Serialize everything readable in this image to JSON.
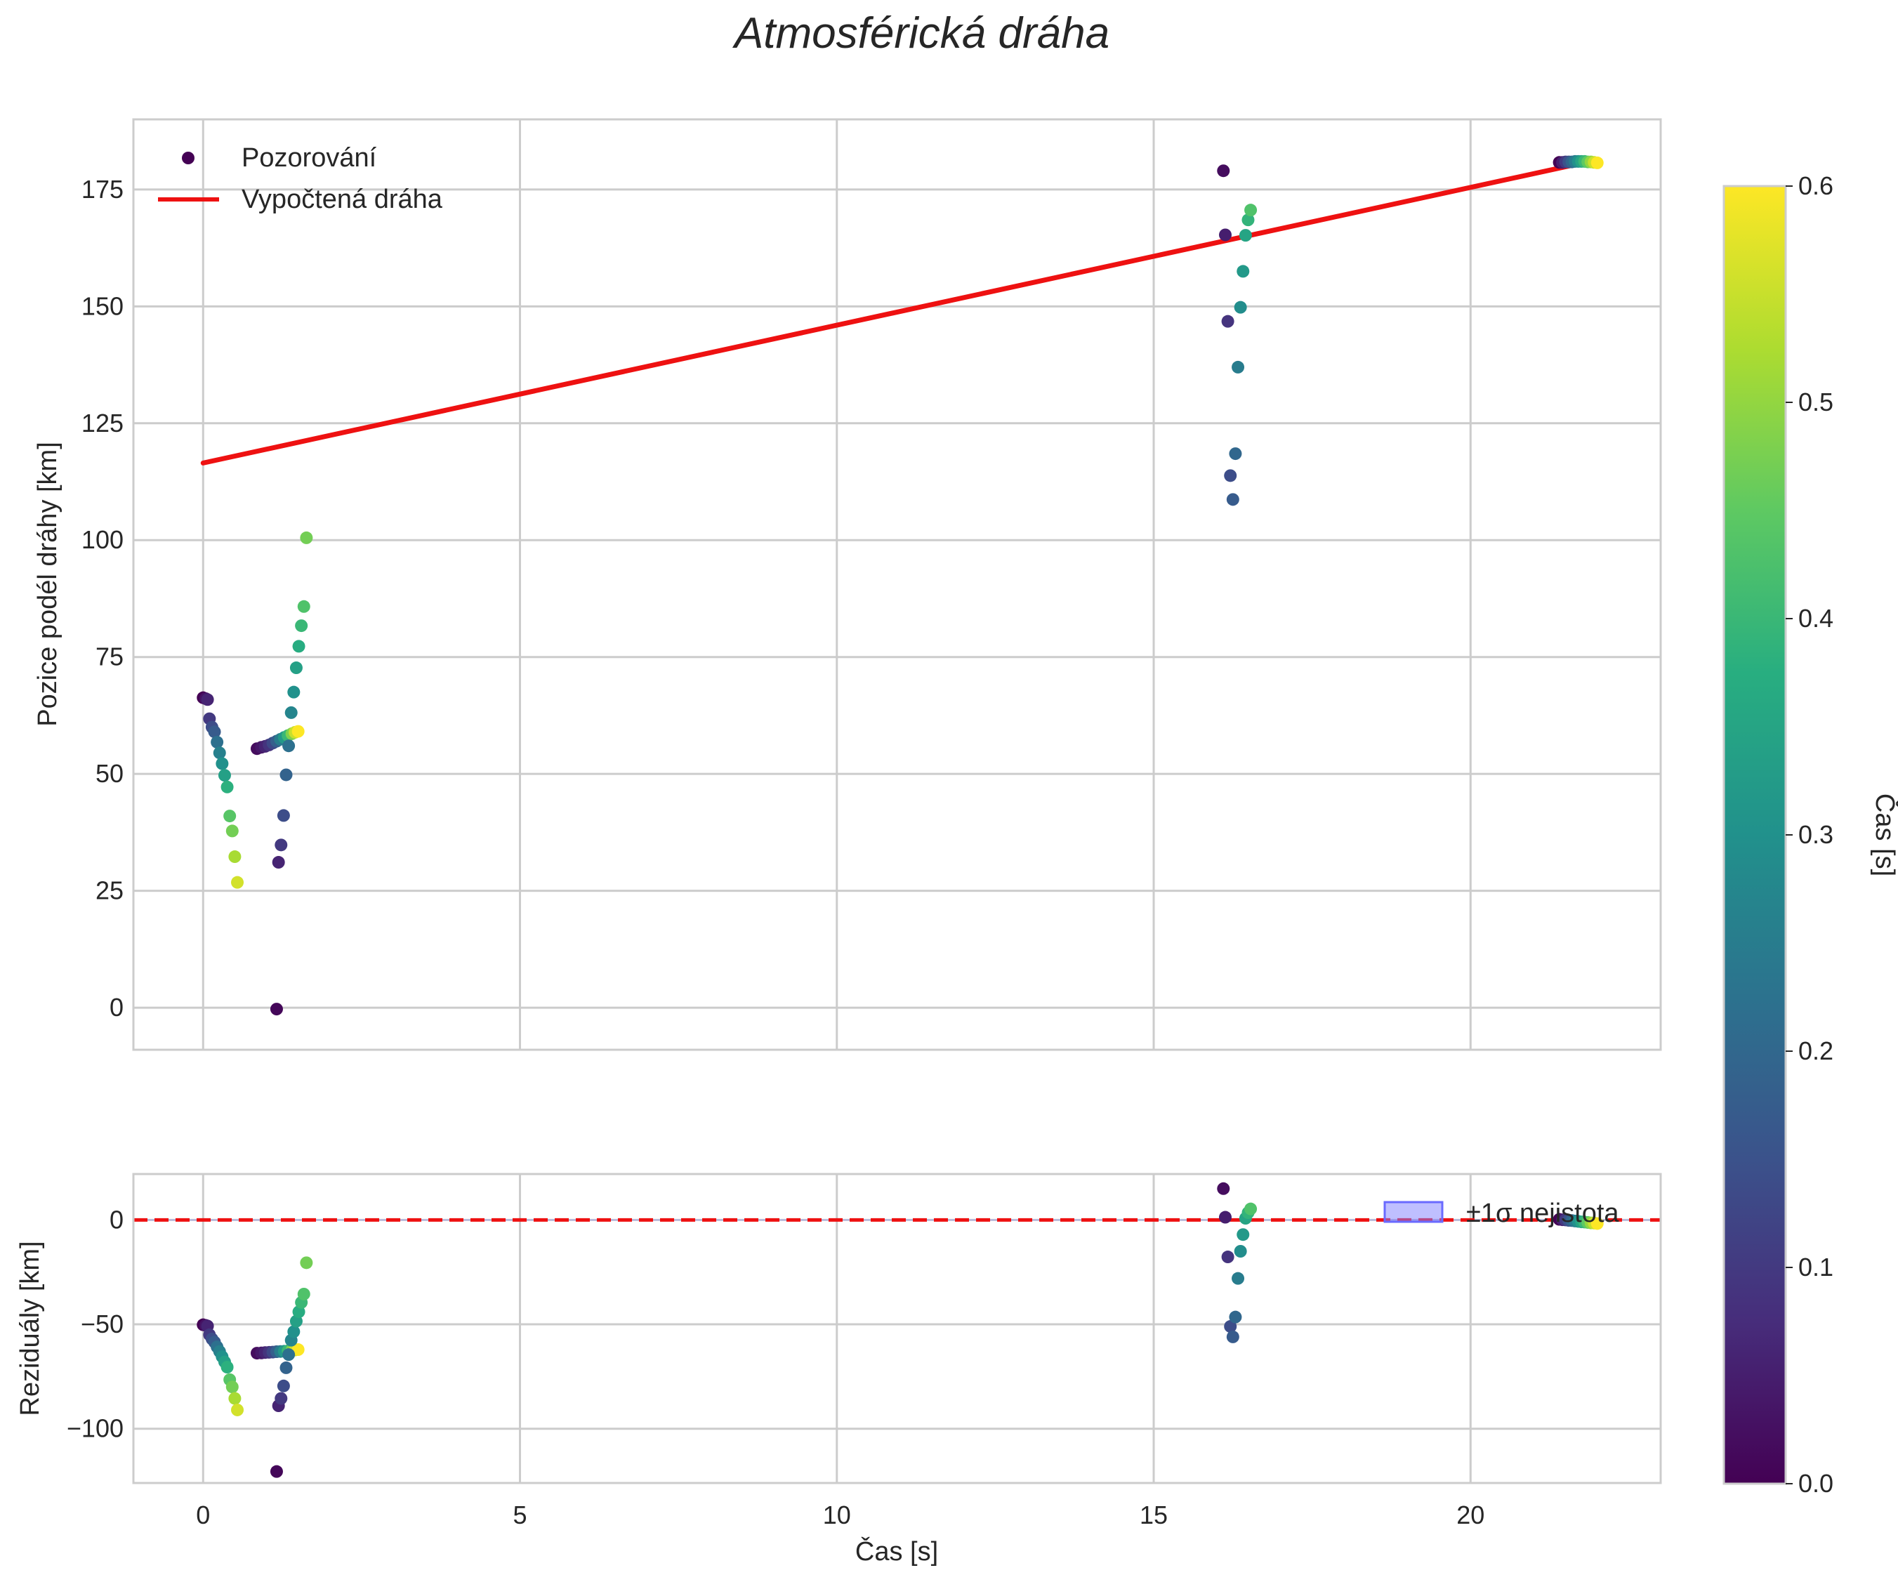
{
  "chart_data": {
    "type": "scatter",
    "title": "Atmosférická dráha",
    "xlabel": "Čas [s]",
    "shared_x": {
      "lim": [
        -1.1,
        23.0
      ],
      "ticks": [
        0,
        5,
        10,
        15,
        20
      ],
      "tick_labels": [
        "0",
        "5",
        "10",
        "15",
        "20"
      ]
    },
    "colorbar": {
      "label": "Čas [s]",
      "lim": [
        0.0,
        0.6
      ],
      "ticks": [
        0.0,
        0.1,
        0.2,
        0.3,
        0.4,
        0.5,
        0.6
      ],
      "tick_labels": [
        "0.0",
        "0.1",
        "0.2",
        "0.3",
        "0.4",
        "0.5",
        "0.6"
      ],
      "colormap": "viridis"
    },
    "colors": {
      "fit_line": "#ee1111",
      "grid": "#cccccc",
      "band": "#8080ff"
    },
    "top_panel": {
      "ylabel": "Pozice podél dráhy [km]",
      "ylim": [
        -9,
        190
      ],
      "yticks": [
        0,
        25,
        50,
        75,
        100,
        125,
        150,
        175
      ],
      "ytick_labels": [
        "0",
        "25",
        "50",
        "75",
        "100",
        "125",
        "150",
        "175"
      ],
      "legend": {
        "position": "top-left",
        "entries": [
          "Pozorování",
          "Vypočtená dráha"
        ]
      },
      "fit_line": {
        "name": "Vypočtená dráha",
        "x": [
          0.0,
          21.95
        ],
        "y": [
          116.5,
          181.2
        ]
      },
      "observations": [
        {
          "x": 0.0,
          "y": 66.3,
          "c": 0.0
        },
        {
          "x": 0.04,
          "y": 66.1,
          "c": 0.03
        },
        {
          "x": 0.07,
          "y": 65.9,
          "c": 0.06
        },
        {
          "x": 0.1,
          "y": 61.8,
          "c": 0.1
        },
        {
          "x": 0.14,
          "y": 60.0,
          "c": 0.14
        },
        {
          "x": 0.18,
          "y": 59.0,
          "c": 0.17
        },
        {
          "x": 0.22,
          "y": 56.8,
          "c": 0.22
        },
        {
          "x": 0.26,
          "y": 54.5,
          "c": 0.26
        },
        {
          "x": 0.3,
          "y": 52.2,
          "c": 0.3
        },
        {
          "x": 0.34,
          "y": 49.7,
          "c": 0.34
        },
        {
          "x": 0.38,
          "y": 47.2,
          "c": 0.38
        },
        {
          "x": 0.42,
          "y": 41.0,
          "c": 0.44
        },
        {
          "x": 0.46,
          "y": 37.8,
          "c": 0.47
        },
        {
          "x": 0.5,
          "y": 32.3,
          "c": 0.52
        },
        {
          "x": 0.54,
          "y": 26.8,
          "c": 0.56
        },
        {
          "x": 0.85,
          "y": 55.4,
          "c": 0.02
        },
        {
          "x": 0.92,
          "y": 55.7,
          "c": 0.04
        },
        {
          "x": 0.98,
          "y": 55.9,
          "c": 0.06
        },
        {
          "x": 1.04,
          "y": 56.2,
          "c": 0.09
        },
        {
          "x": 1.1,
          "y": 56.6,
          "c": 0.13
        },
        {
          "x": 1.16,
          "y": 57.0,
          "c": 0.18
        },
        {
          "x": 1.22,
          "y": 57.4,
          "c": 0.25
        },
        {
          "x": 1.28,
          "y": 57.8,
          "c": 0.32
        },
        {
          "x": 1.34,
          "y": 58.2,
          "c": 0.4
        },
        {
          "x": 1.4,
          "y": 58.6,
          "c": 0.48
        },
        {
          "x": 1.45,
          "y": 58.9,
          "c": 0.55
        },
        {
          "x": 1.5,
          "y": 59.1,
          "c": 0.6
        },
        {
          "x": 1.16,
          "y": -0.3,
          "c": 0.01
        },
        {
          "x": 1.19,
          "y": 31.1,
          "c": 0.06
        },
        {
          "x": 1.23,
          "y": 34.8,
          "c": 0.1
        },
        {
          "x": 1.27,
          "y": 41.1,
          "c": 0.14
        },
        {
          "x": 1.31,
          "y": 49.8,
          "c": 0.19
        },
        {
          "x": 1.35,
          "y": 56.0,
          "c": 0.22
        },
        {
          "x": 1.39,
          "y": 63.1,
          "c": 0.27
        },
        {
          "x": 1.43,
          "y": 67.5,
          "c": 0.3
        },
        {
          "x": 1.47,
          "y": 72.7,
          "c": 0.34
        },
        {
          "x": 1.51,
          "y": 77.3,
          "c": 0.37
        },
        {
          "x": 1.55,
          "y": 81.7,
          "c": 0.4
        },
        {
          "x": 1.59,
          "y": 85.8,
          "c": 0.43
        },
        {
          "x": 1.63,
          "y": 100.5,
          "c": 0.47
        },
        {
          "x": 16.1,
          "y": 179.0,
          "c": 0.02
        },
        {
          "x": 16.13,
          "y": 165.3,
          "c": 0.05
        },
        {
          "x": 16.17,
          "y": 146.8,
          "c": 0.09
        },
        {
          "x": 16.21,
          "y": 113.8,
          "c": 0.14
        },
        {
          "x": 16.25,
          "y": 108.7,
          "c": 0.17
        },
        {
          "x": 16.29,
          "y": 118.5,
          "c": 0.2
        },
        {
          "x": 16.33,
          "y": 137.0,
          "c": 0.25
        },
        {
          "x": 16.37,
          "y": 149.8,
          "c": 0.29
        },
        {
          "x": 16.41,
          "y": 157.5,
          "c": 0.32
        },
        {
          "x": 16.45,
          "y": 165.2,
          "c": 0.35
        },
        {
          "x": 16.49,
          "y": 168.5,
          "c": 0.39
        },
        {
          "x": 16.53,
          "y": 170.6,
          "c": 0.43
        },
        {
          "x": 21.4,
          "y": 180.8,
          "c": 0.0
        },
        {
          "x": 21.45,
          "y": 180.8,
          "c": 0.05
        },
        {
          "x": 21.5,
          "y": 180.9,
          "c": 0.1
        },
        {
          "x": 21.55,
          "y": 180.9,
          "c": 0.15
        },
        {
          "x": 21.6,
          "y": 180.9,
          "c": 0.2
        },
        {
          "x": 21.65,
          "y": 181.0,
          "c": 0.25
        },
        {
          "x": 21.7,
          "y": 181.0,
          "c": 0.3
        },
        {
          "x": 21.75,
          "y": 181.0,
          "c": 0.35
        },
        {
          "x": 21.8,
          "y": 181.0,
          "c": 0.4
        },
        {
          "x": 21.85,
          "y": 180.9,
          "c": 0.45
        },
        {
          "x": 21.9,
          "y": 180.9,
          "c": 0.5
        },
        {
          "x": 21.95,
          "y": 180.8,
          "c": 0.55
        },
        {
          "x": 22.0,
          "y": 180.7,
          "c": 0.6
        }
      ]
    },
    "bottom_panel": {
      "ylabel": "Reziduály [km]",
      "ylim": [
        -126,
        22
      ],
      "yticks": [
        0,
        -50,
        -100
      ],
      "ytick_labels": [
        "0",
        "−50",
        "−100"
      ],
      "legend": {
        "position": "top-right",
        "entries": [
          "±1σ nejistota"
        ]
      },
      "zero_line": {
        "y": 0,
        "style": "dashed"
      },
      "residuals": [
        {
          "x": 0.0,
          "y": -50.2,
          "c": 0.0
        },
        {
          "x": 0.04,
          "y": -50.5,
          "c": 0.03
        },
        {
          "x": 0.07,
          "y": -50.8,
          "c": 0.06
        },
        {
          "x": 0.1,
          "y": -55.0,
          "c": 0.1
        },
        {
          "x": 0.14,
          "y": -57.0,
          "c": 0.14
        },
        {
          "x": 0.18,
          "y": -58.5,
          "c": 0.17
        },
        {
          "x": 0.22,
          "y": -60.8,
          "c": 0.22
        },
        {
          "x": 0.26,
          "y": -63.0,
          "c": 0.26
        },
        {
          "x": 0.3,
          "y": -65.5,
          "c": 0.3
        },
        {
          "x": 0.34,
          "y": -68.0,
          "c": 0.34
        },
        {
          "x": 0.38,
          "y": -70.5,
          "c": 0.38
        },
        {
          "x": 0.42,
          "y": -76.5,
          "c": 0.44
        },
        {
          "x": 0.46,
          "y": -80.0,
          "c": 0.47
        },
        {
          "x": 0.5,
          "y": -85.5,
          "c": 0.52
        },
        {
          "x": 0.54,
          "y": -91.0,
          "c": 0.56
        },
        {
          "x": 0.85,
          "y": -63.8,
          "c": 0.02
        },
        {
          "x": 0.92,
          "y": -63.7,
          "c": 0.04
        },
        {
          "x": 0.98,
          "y": -63.5,
          "c": 0.06
        },
        {
          "x": 1.04,
          "y": -63.4,
          "c": 0.09
        },
        {
          "x": 1.1,
          "y": -63.3,
          "c": 0.13
        },
        {
          "x": 1.16,
          "y": -63.1,
          "c": 0.18
        },
        {
          "x": 1.22,
          "y": -63.0,
          "c": 0.25
        },
        {
          "x": 1.28,
          "y": -62.9,
          "c": 0.32
        },
        {
          "x": 1.34,
          "y": -62.7,
          "c": 0.4
        },
        {
          "x": 1.4,
          "y": -62.5,
          "c": 0.48
        },
        {
          "x": 1.45,
          "y": -62.3,
          "c": 0.55
        },
        {
          "x": 1.5,
          "y": -62.1,
          "c": 0.6
        },
        {
          "x": 1.16,
          "y": -120.5,
          "c": 0.01
        },
        {
          "x": 1.19,
          "y": -89.0,
          "c": 0.06
        },
        {
          "x": 1.23,
          "y": -85.5,
          "c": 0.1
        },
        {
          "x": 1.27,
          "y": -79.5,
          "c": 0.14
        },
        {
          "x": 1.31,
          "y": -70.8,
          "c": 0.19
        },
        {
          "x": 1.35,
          "y": -64.5,
          "c": 0.22
        },
        {
          "x": 1.39,
          "y": -57.6,
          "c": 0.27
        },
        {
          "x": 1.43,
          "y": -53.5,
          "c": 0.3
        },
        {
          "x": 1.47,
          "y": -48.5,
          "c": 0.34
        },
        {
          "x": 1.51,
          "y": -44.0,
          "c": 0.37
        },
        {
          "x": 1.55,
          "y": -39.5,
          "c": 0.4
        },
        {
          "x": 1.59,
          "y": -35.5,
          "c": 0.43
        },
        {
          "x": 1.63,
          "y": -20.5,
          "c": 0.47
        },
        {
          "x": 16.1,
          "y": 15.0,
          "c": 0.02
        },
        {
          "x": 16.13,
          "y": 1.3,
          "c": 0.05
        },
        {
          "x": 16.17,
          "y": -17.7,
          "c": 0.09
        },
        {
          "x": 16.21,
          "y": -51.0,
          "c": 0.14
        },
        {
          "x": 16.25,
          "y": -56.0,
          "c": 0.17
        },
        {
          "x": 16.29,
          "y": -46.5,
          "c": 0.2
        },
        {
          "x": 16.33,
          "y": -28.0,
          "c": 0.25
        },
        {
          "x": 16.37,
          "y": -15.0,
          "c": 0.29
        },
        {
          "x": 16.41,
          "y": -7.0,
          "c": 0.32
        },
        {
          "x": 16.45,
          "y": 0.8,
          "c": 0.35
        },
        {
          "x": 16.49,
          "y": 3.5,
          "c": 0.39
        },
        {
          "x": 16.53,
          "y": 5.3,
          "c": 0.43
        },
        {
          "x": 21.4,
          "y": 0.3,
          "c": 0.0
        },
        {
          "x": 21.45,
          "y": 0.1,
          "c": 0.05
        },
        {
          "x": 21.5,
          "y": 0.0,
          "c": 0.1
        },
        {
          "x": 21.55,
          "y": -0.2,
          "c": 0.15
        },
        {
          "x": 21.6,
          "y": -0.3,
          "c": 0.2
        },
        {
          "x": 21.65,
          "y": -0.5,
          "c": 0.25
        },
        {
          "x": 21.7,
          "y": -0.7,
          "c": 0.3
        },
        {
          "x": 21.75,
          "y": -0.9,
          "c": 0.35
        },
        {
          "x": 21.8,
          "y": -1.0,
          "c": 0.4
        },
        {
          "x": 21.85,
          "y": -1.2,
          "c": 0.45
        },
        {
          "x": 21.9,
          "y": -1.4,
          "c": 0.5
        },
        {
          "x": 21.95,
          "y": -1.5,
          "c": 0.55
        },
        {
          "x": 22.0,
          "y": -1.7,
          "c": 0.6
        }
      ]
    }
  }
}
